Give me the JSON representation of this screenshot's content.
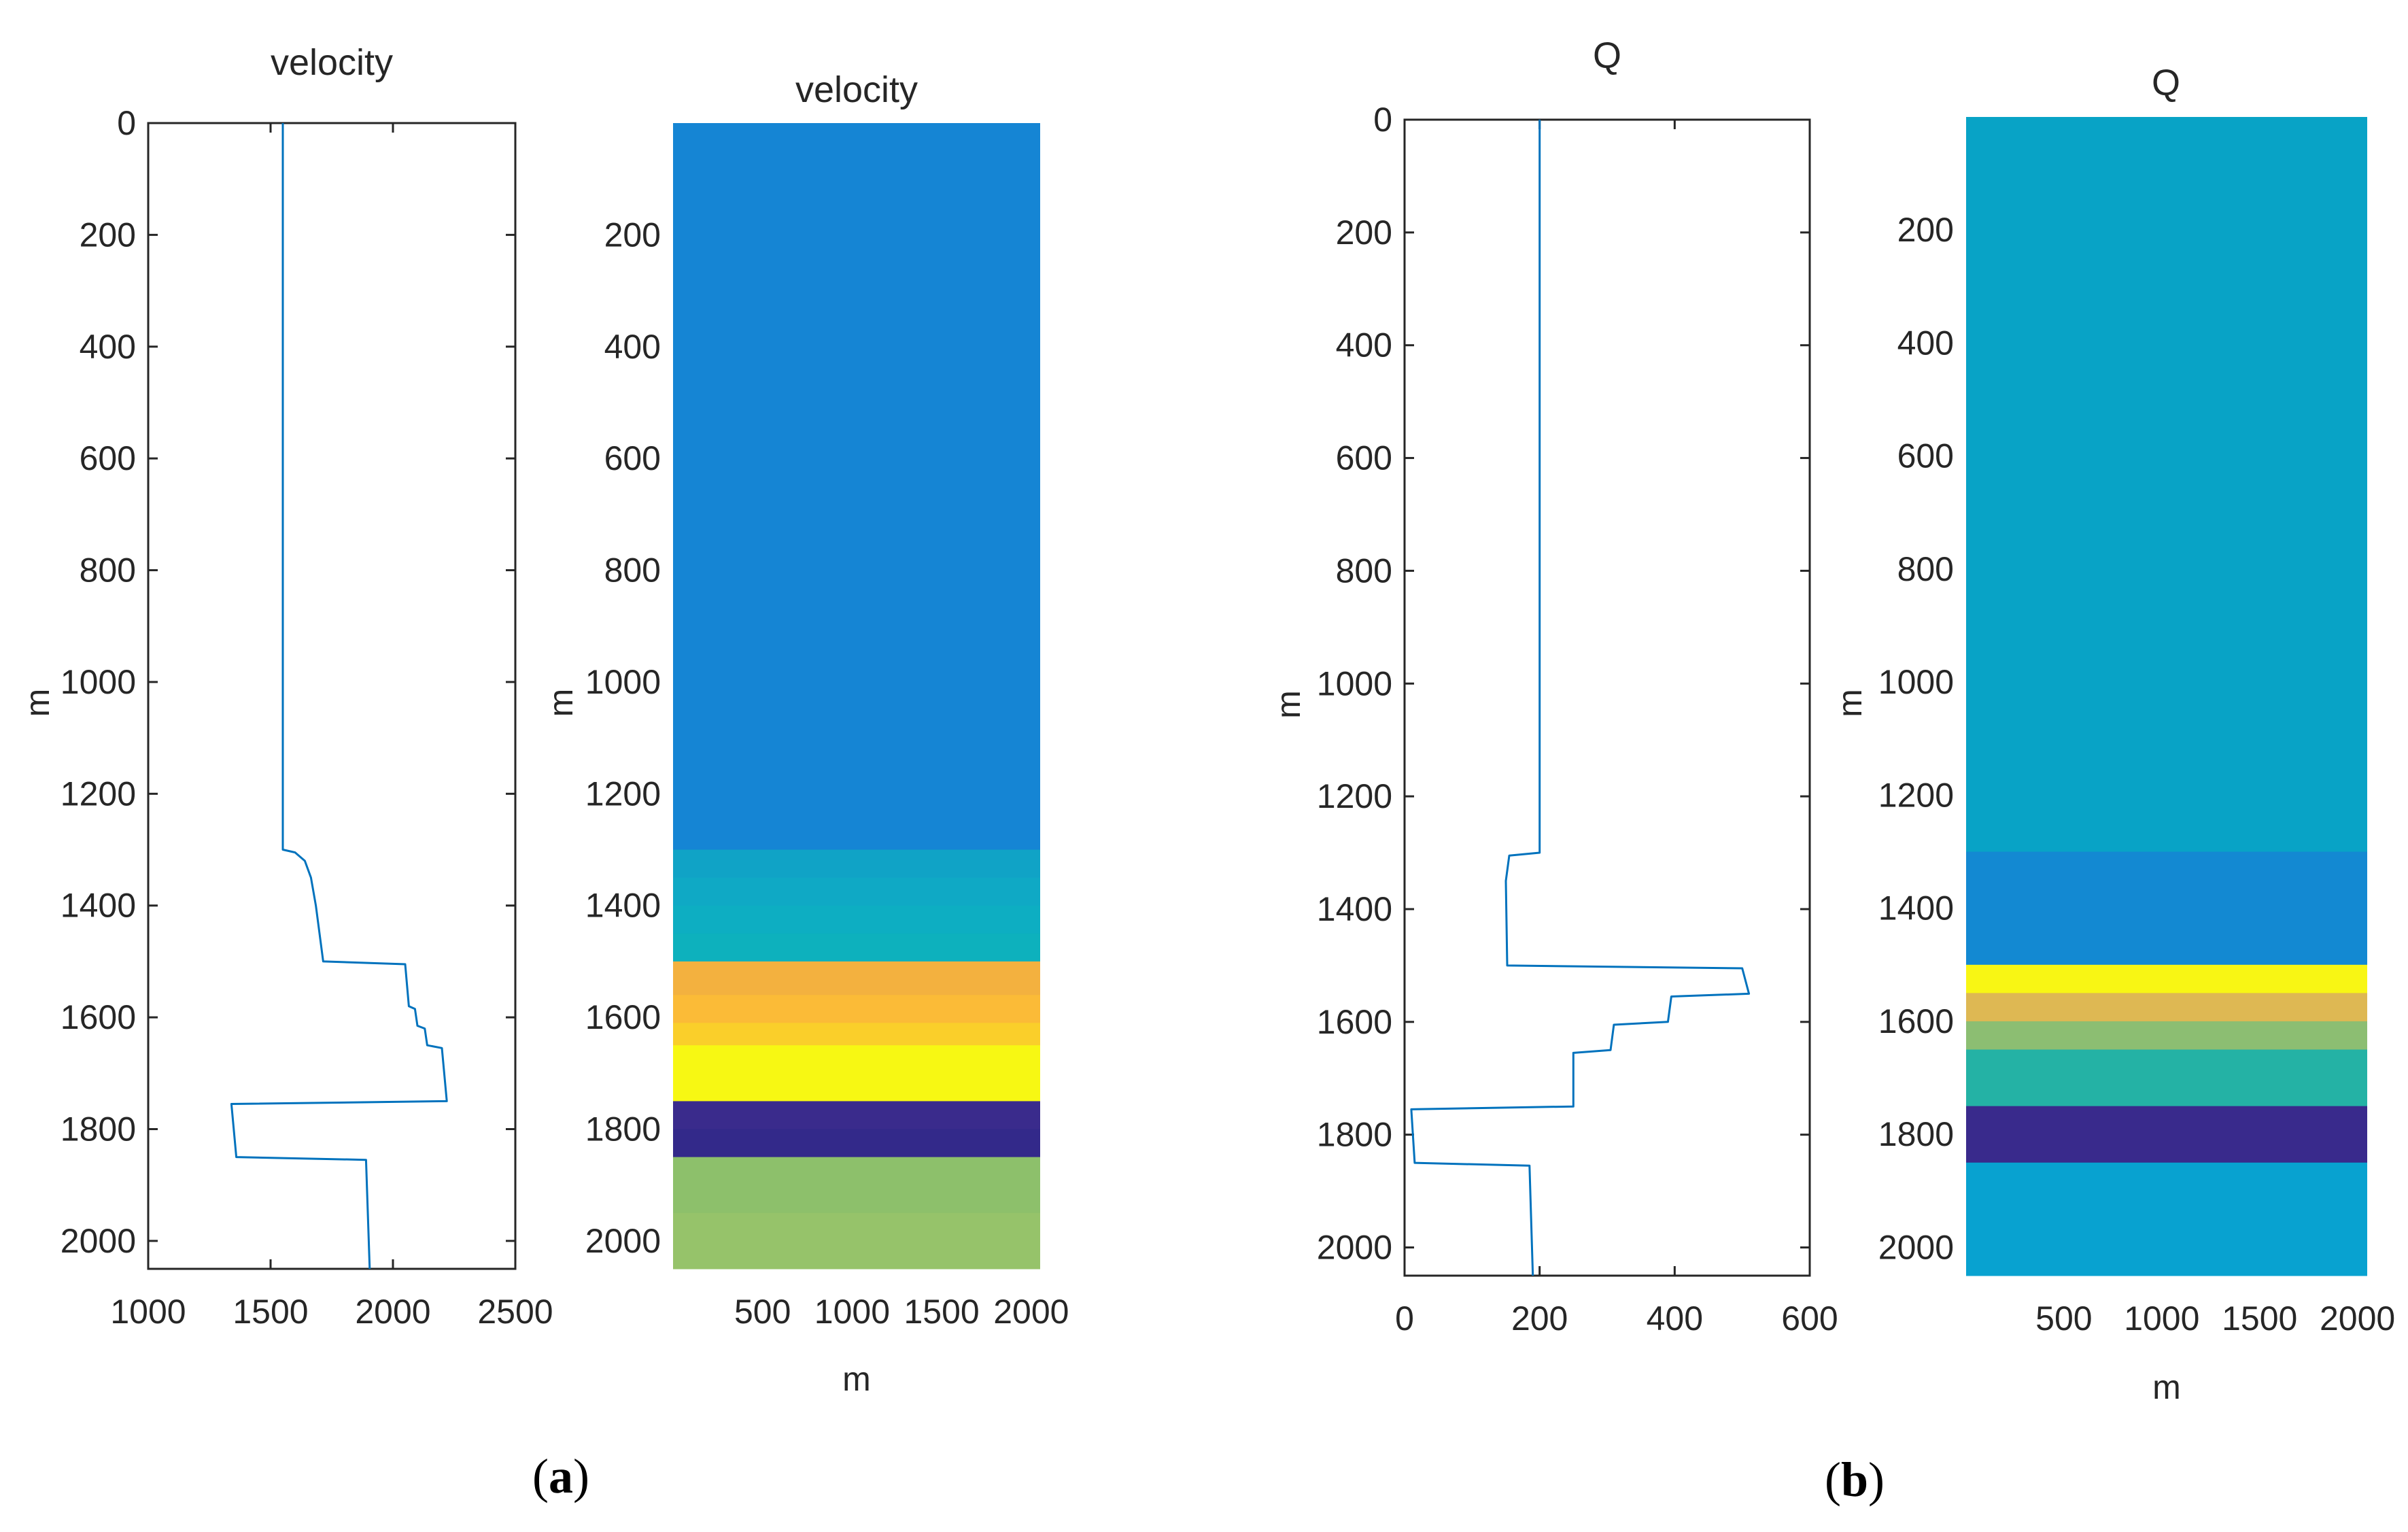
{
  "chart_data": [
    {
      "type": "line",
      "title": "velocity",
      "xlabel": "",
      "ylabel": "m",
      "xlim": [
        1000,
        2500
      ],
      "ylim": [
        0,
        2050
      ],
      "y_reversed": true,
      "xticks": [
        1000,
        1500,
        2000,
        2500
      ],
      "yticks": [
        0,
        200,
        400,
        600,
        800,
        1000,
        1200,
        1400,
        1600,
        1800,
        2000
      ],
      "line_color": "#0072BD",
      "series": [
        {
          "name": "velocity",
          "points": [
            [
              1550,
              0
            ],
            [
              1550,
              1300
            ],
            [
              1600,
              1305
            ],
            [
              1640,
              1320
            ],
            [
              1665,
              1350
            ],
            [
              1685,
              1400
            ],
            [
              1700,
              1450
            ],
            [
              1715,
              1500
            ],
            [
              2050,
              1505
            ],
            [
              2065,
              1580
            ],
            [
              2090,
              1585
            ],
            [
              2100,
              1615
            ],
            [
              2130,
              1620
            ],
            [
              2140,
              1650
            ],
            [
              2200,
              1655
            ],
            [
              2220,
              1750
            ],
            [
              1340,
              1755
            ],
            [
              1360,
              1850
            ],
            [
              1890,
              1855
            ],
            [
              1905,
              2050
            ]
          ]
        }
      ]
    },
    {
      "type": "heatmap",
      "title": "velocity",
      "xlabel": "m",
      "ylabel": "m",
      "xlim": [
        0,
        2050
      ],
      "ylim": [
        0,
        2050
      ],
      "y_reversed": true,
      "xticks": [
        500,
        1000,
        1500,
        2000
      ],
      "yticks": [
        200,
        400,
        600,
        800,
        1000,
        1200,
        1400,
        1600,
        1800,
        2000
      ],
      "layers": [
        {
          "top": 0,
          "bottom": 1300,
          "color": "#1585D4"
        },
        {
          "top": 1300,
          "bottom": 1350,
          "color": "#10A3C6"
        },
        {
          "top": 1350,
          "bottom": 1400,
          "color": "#0FA9C5"
        },
        {
          "top": 1400,
          "bottom": 1450,
          "color": "#0DAEC2"
        },
        {
          "top": 1450,
          "bottom": 1500,
          "color": "#0DB1BD"
        },
        {
          "top": 1500,
          "bottom": 1560,
          "color": "#F3B13F"
        },
        {
          "top": 1560,
          "bottom": 1610,
          "color": "#FBBB37"
        },
        {
          "top": 1610,
          "bottom": 1650,
          "color": "#FACF2A"
        },
        {
          "top": 1650,
          "bottom": 1750,
          "color": "#F7F813"
        },
        {
          "top": 1750,
          "bottom": 1800,
          "color": "#3A2B8C"
        },
        {
          "top": 1800,
          "bottom": 1850,
          "color": "#33298A"
        },
        {
          "top": 1850,
          "bottom": 1950,
          "color": "#8DC06B"
        },
        {
          "top": 1950,
          "bottom": 2050,
          "color": "#96C36A"
        }
      ]
    },
    {
      "type": "line",
      "title": "Q",
      "xlabel": "",
      "ylabel": "m",
      "xlim": [
        0,
        600
      ],
      "ylim": [
        0,
        2050
      ],
      "y_reversed": true,
      "xticks": [
        0,
        200,
        400,
        600
      ],
      "yticks": [
        0,
        200,
        400,
        600,
        800,
        1000,
        1200,
        1400,
        1600,
        1800,
        2000
      ],
      "line_color": "#0072BD",
      "series": [
        {
          "name": "Q",
          "points": [
            [
              200,
              0
            ],
            [
              200,
              1300
            ],
            [
              155,
              1305
            ],
            [
              150,
              1350
            ],
            [
              152,
              1500
            ],
            [
              500,
              1505
            ],
            [
              510,
              1550
            ],
            [
              395,
              1555
            ],
            [
              390,
              1600
            ],
            [
              310,
              1605
            ],
            [
              305,
              1650
            ],
            [
              250,
              1655
            ],
            [
              250,
              1750
            ],
            [
              10,
              1755
            ],
            [
              15,
              1850
            ],
            [
              185,
              1855
            ],
            [
              190,
              2050
            ]
          ]
        }
      ]
    },
    {
      "type": "heatmap",
      "title": "Q",
      "xlabel": "m",
      "ylabel": "m",
      "xlim": [
        0,
        2050
      ],
      "ylim": [
        0,
        2050
      ],
      "y_reversed": true,
      "xticks": [
        500,
        1000,
        1500,
        2000
      ],
      "yticks": [
        200,
        400,
        600,
        800,
        1000,
        1200,
        1400,
        1600,
        1800,
        2000
      ],
      "layers": [
        {
          "top": 0,
          "bottom": 1300,
          "color": "#08A3C6"
        },
        {
          "top": 1300,
          "bottom": 1500,
          "color": "#1389D2"
        },
        {
          "top": 1500,
          "bottom": 1550,
          "color": "#F8F614"
        },
        {
          "top": 1550,
          "bottom": 1600,
          "color": "#DEB853"
        },
        {
          "top": 1600,
          "bottom": 1650,
          "color": "#8CBE72"
        },
        {
          "top": 1650,
          "bottom": 1750,
          "color": "#24B2A5"
        },
        {
          "top": 1750,
          "bottom": 1850,
          "color": "#392A8C"
        },
        {
          "top": 1850,
          "bottom": 2050,
          "color": "#08A2D0"
        }
      ]
    }
  ],
  "panel_labels": {
    "a": {
      "open": "(",
      "letter": "a",
      "close": ")"
    },
    "b": {
      "open": "(",
      "letter": "b",
      "close": ")"
    }
  }
}
